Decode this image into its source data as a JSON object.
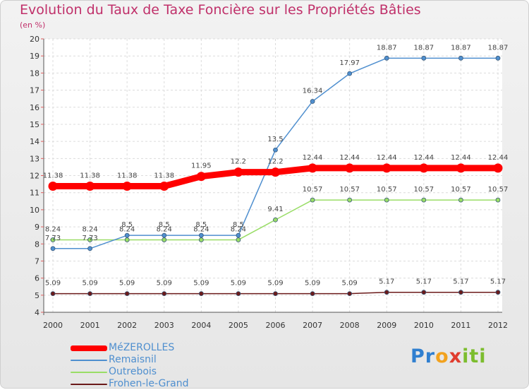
{
  "header": {
    "title": "Evolution du Taux de Taxe Foncière sur les Propriétés Bâties",
    "subtitle": "(en %)"
  },
  "logo": {
    "letters": [
      "P",
      "r",
      "o",
      "x",
      "i",
      "t",
      "i"
    ],
    "colors": [
      "#2f7fd0",
      "#2f7fd0",
      "#f2a21e",
      "#e03c2e",
      "#7cbd2e",
      "#7cbd2e",
      "#7cbd2e"
    ]
  },
  "chart_data": {
    "type": "line",
    "title": "Evolution du Taux de Taxe Foncière sur les Propriétés Bâties",
    "ylabel": "(en %)",
    "xlabel": "",
    "categories": [
      "2000",
      "2001",
      "2002",
      "2003",
      "2004",
      "2005",
      "2006",
      "2007",
      "2008",
      "2009",
      "2010",
      "2011",
      "2012"
    ],
    "ylim": [
      4,
      20
    ],
    "yticks": [
      "4",
      "5",
      "6",
      "7",
      "8",
      "9",
      "10",
      "11",
      "12",
      "13",
      "14",
      "15",
      "16",
      "17",
      "18",
      "19",
      "20"
    ],
    "grid": true,
    "legend_position": "bottom-left",
    "series": [
      {
        "name": "MéZEROLLES",
        "color": "#ff0000",
        "values": [
          11.38,
          11.38,
          11.38,
          11.38,
          11.95,
          12.2,
          12.2,
          12.44,
          12.44,
          12.44,
          12.44,
          12.44,
          12.44
        ],
        "labels": [
          "11.38",
          "11.38",
          "11.38",
          "11.38",
          "11.95",
          "12.2",
          "12.2",
          "12.44",
          "12.44",
          "12.44",
          "12.44",
          "12.44",
          "12.44"
        ]
      },
      {
        "name": "Remaisnil",
        "color": "#4f8fcf",
        "values": [
          7.73,
          7.73,
          8.5,
          8.5,
          8.5,
          8.5,
          13.5,
          16.34,
          17.97,
          18.87,
          18.87,
          18.87,
          18.87
        ],
        "labels": [
          "7.73",
          "7.73",
          "8.5",
          "8.5",
          "8.5",
          "8.5",
          "13.5",
          "16.34",
          "17.97",
          "18.87",
          "18.87",
          "18.87",
          "18.87"
        ]
      },
      {
        "name": "Outrebois",
        "color": "#99dd66",
        "values": [
          8.24,
          8.24,
          8.24,
          8.24,
          8.24,
          8.24,
          9.41,
          10.57,
          10.57,
          10.57,
          10.57,
          10.57,
          10.57
        ],
        "labels": [
          "8.24",
          "8.24",
          "8.24",
          "8.24",
          "8.24",
          "8.24",
          "9.41",
          "10.57",
          "10.57",
          "10.57",
          "10.57",
          "10.57",
          "10.57"
        ]
      },
      {
        "name": "Frohen-le-Grand",
        "color": "#6b1a1a",
        "values": [
          5.09,
          5.09,
          5.09,
          5.09,
          5.09,
          5.09,
          5.09,
          5.09,
          5.09,
          5.17,
          5.17,
          5.17,
          5.17
        ],
        "labels": [
          "5.09",
          "5.09",
          "5.09",
          "5.09",
          "5.09",
          "5.09",
          "5.09",
          "5.09",
          "5.09",
          "5.17",
          "5.17",
          "5.17",
          "5.17"
        ]
      }
    ]
  }
}
